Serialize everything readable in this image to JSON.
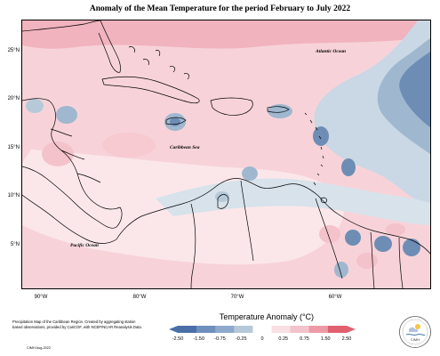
{
  "title": "Anomaly of the Mean Temperature for the period February to July 2022",
  "map_labels": {
    "atlantic": "Atlantic Ocean",
    "caribbean": "Caribbean Sea",
    "pacific": "Pacific Ocean"
  },
  "latitude_labels": [
    "25°N",
    "20°N",
    "15°N",
    "10°N",
    "5°N"
  ],
  "longitude_labels": [
    "90°W",
    "80°W",
    "70°W",
    "60°W"
  ],
  "legend": {
    "title": "Temperature Anomaly (°C)",
    "ticks": [
      "-2.50",
      "-1.50",
      "-0.75",
      "-0.25",
      "0",
      "0.25",
      "0.75",
      "1.50",
      "2.50"
    ],
    "colors": [
      "#4a6fa8",
      "#6f8fbd",
      "#8fa9cc",
      "#b5c9d9",
      "#ffffff",
      "#f9dfe3",
      "#f4c2ca",
      "#ee9aa6",
      "#e06070"
    ]
  },
  "footnote": "Precipitation Map of the Caribbean Region. Created by aggregating station based observations, provided by CariCOF, with NCEP/NCAR Reanalysis Data.",
  "copyright": "CIMH Aug-2022",
  "logo_text": "CIMH",
  "colors": {
    "warm_light": "#f9dfe3",
    "warm": "#f4c2ca",
    "warm_strong": "#ee9aa6",
    "cool_light": "#c9d8e4",
    "cool": "#9fb7cf",
    "cool_strong": "#6d8db5"
  }
}
